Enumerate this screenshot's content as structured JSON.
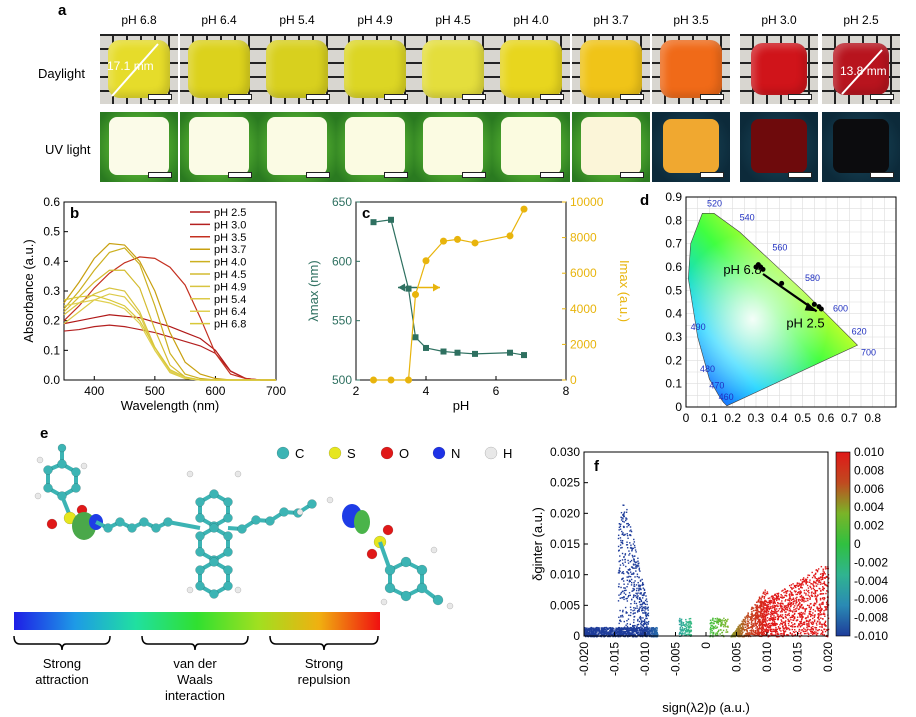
{
  "panel_labels": {
    "a": "a",
    "b": "b",
    "c": "c",
    "d": "d",
    "e": "e",
    "f": "f"
  },
  "panel_a": {
    "rows": [
      "Daylight",
      "UV light"
    ],
    "ph_labels": [
      "pH 6.8",
      "pH 6.4",
      "pH 5.4",
      "pH 4.9",
      "pH 4.5",
      "pH 4.0",
      "pH 3.7",
      "pH 3.5",
      "pH 3.0",
      "pH 2.5"
    ],
    "daylight_colors": [
      "#e6dc2a",
      "#dcd21c",
      "#d8d01e",
      "#dcd624",
      "#e4de3c",
      "#e8d61e",
      "#f0c418",
      "#f06a18",
      "#d0141a",
      "#b8141e"
    ],
    "uv_colors": [
      "#fbfbe8",
      "#fbfbe6",
      "#fbfbe4",
      "#fbfbe2",
      "#fbfbe2",
      "#fbfbe0",
      "#fbf5d8",
      "#f0a830",
      "#6e0a0c",
      "#0c0c0e"
    ],
    "size_left": "17.1 mm",
    "size_right": "13.8 mm"
  },
  "chart_data": [
    {
      "type": "line",
      "panel": "b",
      "xlabel": "Wavelength (nm)",
      "ylabel": "Absorbance (a.u.)",
      "xlim": [
        350,
        700
      ],
      "ylim": [
        0,
        0.6
      ],
      "xticks": [
        "400",
        "500",
        "600",
        "700"
      ],
      "yticks": [
        "0.0",
        "0.1",
        "0.2",
        "0.3",
        "0.4",
        "0.5",
        "0.6"
      ],
      "x": [
        350,
        375,
        400,
        425,
        450,
        475,
        500,
        525,
        550,
        575,
        600,
        625,
        650,
        675,
        700
      ],
      "series": [
        {
          "name": "pH 2.5",
          "color": "#b01818",
          "values": [
            0.19,
            0.2,
            0.21,
            0.22,
            0.215,
            0.21,
            0.195,
            0.18,
            0.16,
            0.14,
            0.1,
            0.03,
            0.005,
            0,
            0
          ]
        },
        {
          "name": "pH 3.0",
          "color": "#b42020",
          "values": [
            0.165,
            0.17,
            0.18,
            0.185,
            0.18,
            0.17,
            0.16,
            0.145,
            0.13,
            0.115,
            0.09,
            0.03,
            0.005,
            0,
            0
          ]
        },
        {
          "name": "pH 3.5",
          "color": "#c43020",
          "values": [
            0.2,
            0.25,
            0.31,
            0.36,
            0.395,
            0.415,
            0.41,
            0.38,
            0.32,
            0.21,
            0.09,
            0.02,
            0.005,
            0,
            0
          ]
        },
        {
          "name": "pH 3.7",
          "color": "#c8a010",
          "values": [
            0.26,
            0.33,
            0.41,
            0.46,
            0.455,
            0.4,
            0.3,
            0.16,
            0.06,
            0.02,
            0.005,
            0,
            0,
            0,
            0
          ]
        },
        {
          "name": "pH 4.0",
          "color": "#ccb020",
          "values": [
            0.24,
            0.3,
            0.37,
            0.43,
            0.445,
            0.39,
            0.25,
            0.09,
            0.02,
            0.005,
            0,
            0,
            0,
            0,
            0
          ]
        },
        {
          "name": "pH 4.5",
          "color": "#d4bc30",
          "values": [
            0.23,
            0.28,
            0.33,
            0.37,
            0.37,
            0.31,
            0.17,
            0.05,
            0.01,
            0,
            0,
            0,
            0,
            0,
            0
          ]
        },
        {
          "name": "pH 4.9",
          "color": "#d8c440",
          "values": [
            0.22,
            0.26,
            0.29,
            0.31,
            0.3,
            0.23,
            0.11,
            0.03,
            0.005,
            0,
            0,
            0,
            0,
            0,
            0
          ]
        },
        {
          "name": "pH 5.4",
          "color": "#dcca48",
          "values": [
            0.19,
            0.23,
            0.27,
            0.29,
            0.28,
            0.22,
            0.1,
            0.025,
            0.005,
            0,
            0,
            0,
            0,
            0,
            0
          ]
        },
        {
          "name": "pH 6.4",
          "color": "#e0d050",
          "values": [
            0.25,
            0.26,
            0.27,
            0.26,
            0.24,
            0.19,
            0.1,
            0.03,
            0.005,
            0,
            0,
            0,
            0,
            0,
            0
          ]
        },
        {
          "name": "pH 6.8",
          "color": "#d8c838",
          "values": [
            0.27,
            0.28,
            0.285,
            0.27,
            0.25,
            0.2,
            0.11,
            0.035,
            0.01,
            0,
            0,
            0,
            0,
            0,
            0
          ]
        }
      ]
    },
    {
      "type": "line",
      "panel": "c",
      "xlabel": "pH",
      "ylabel_left": "λmax (nm)",
      "ylabel_right": "Imax (a.u.)",
      "xlim": [
        2,
        8
      ],
      "ylim_left": [
        500,
        650
      ],
      "ylim_right": [
        0,
        10000
      ],
      "xticks": [
        "2",
        "4",
        "6",
        "8"
      ],
      "yticks_left": [
        "500",
        "550",
        "600",
        "650"
      ],
      "yticks_right": [
        "0",
        "2000",
        "4000",
        "6000",
        "8000",
        "10000"
      ],
      "x": [
        2.5,
        3.0,
        3.5,
        3.7,
        4.0,
        4.5,
        4.9,
        5.4,
        6.4,
        6.8
      ],
      "series": [
        {
          "name": "λmax",
          "axis": "left",
          "color": "#2e7060",
          "values": [
            633,
            635,
            577,
            536,
            527,
            524,
            523,
            522,
            523,
            521
          ]
        },
        {
          "name": "Imax",
          "axis": "right",
          "color": "#e8b40c",
          "values": [
            0,
            0,
            0,
            4800,
            6700,
            7800,
            7900,
            7700,
            8100,
            9600
          ]
        }
      ]
    },
    {
      "type": "scatter",
      "panel": "d",
      "xlim": [
        0,
        0.9
      ],
      "ylim": [
        0,
        0.9
      ],
      "xticks": [
        "0",
        "0.1",
        "0.2",
        "0.3",
        "0.4",
        "0.5",
        "0.6",
        "0.7",
        "0.8"
      ],
      "yticks": [
        "0",
        "0.1",
        "0.2",
        "0.3",
        "0.4",
        "0.5",
        "0.6",
        "0.7",
        "0.8",
        "0.9"
      ],
      "wavelength_marks": [
        "460",
        "470",
        "480",
        "490",
        "520",
        "540",
        "560",
        "580",
        "600",
        "620",
        "700"
      ],
      "points": [
        {
          "x": 0.3,
          "y": 0.6
        },
        {
          "x": 0.31,
          "y": 0.61
        },
        {
          "x": 0.32,
          "y": 0.6
        },
        {
          "x": 0.33,
          "y": 0.59
        },
        {
          "x": 0.41,
          "y": 0.53
        },
        {
          "x": 0.55,
          "y": 0.44
        },
        {
          "x": 0.57,
          "y": 0.43
        },
        {
          "x": 0.58,
          "y": 0.42
        }
      ],
      "annotation_start": "pH 6.8",
      "annotation_end": "pH 2.5"
    },
    {
      "type": "scatter",
      "panel": "f",
      "xlabel": "sign(λ2)ρ (a.u.)",
      "ylabel": "δginter (a.u.)",
      "xlim": [
        -0.02,
        0.02
      ],
      "ylim": [
        0,
        0.03
      ],
      "xticks": [
        "-0.020",
        "-0.015",
        "-0.010",
        "-0.005",
        "0",
        "0.005",
        "0.010",
        "0.015",
        "0.020"
      ],
      "yticks": [
        "0",
        "0.005",
        "0.010",
        "0.015",
        "0.020",
        "0.025",
        "0.030"
      ],
      "colorbar_ticks": [
        "0.010",
        "0.008",
        "0.006",
        "0.004",
        "0.002",
        "0",
        "-0.002",
        "-0.004",
        "-0.006",
        "-0.008",
        "-0.010"
      ],
      "colorbar_range": [
        -0.01,
        0.01
      ]
    }
  ],
  "panel_e": {
    "legend": [
      {
        "symbol": "C",
        "color": "#3cb4b4"
      },
      {
        "symbol": "S",
        "color": "#e6e61e"
      },
      {
        "symbol": "O",
        "color": "#e01818"
      },
      {
        "symbol": "N",
        "color": "#1e32e6"
      },
      {
        "symbol": "H",
        "color": "#e8e8e8"
      }
    ],
    "gradient_labels": [
      {
        "line1": "Strong",
        "line2": "attraction",
        "line3": ""
      },
      {
        "line1": "van der",
        "line2": "Waals",
        "line3": "interaction"
      },
      {
        "line1": "Strong",
        "line2": "repulsion",
        "line3": ""
      }
    ]
  }
}
